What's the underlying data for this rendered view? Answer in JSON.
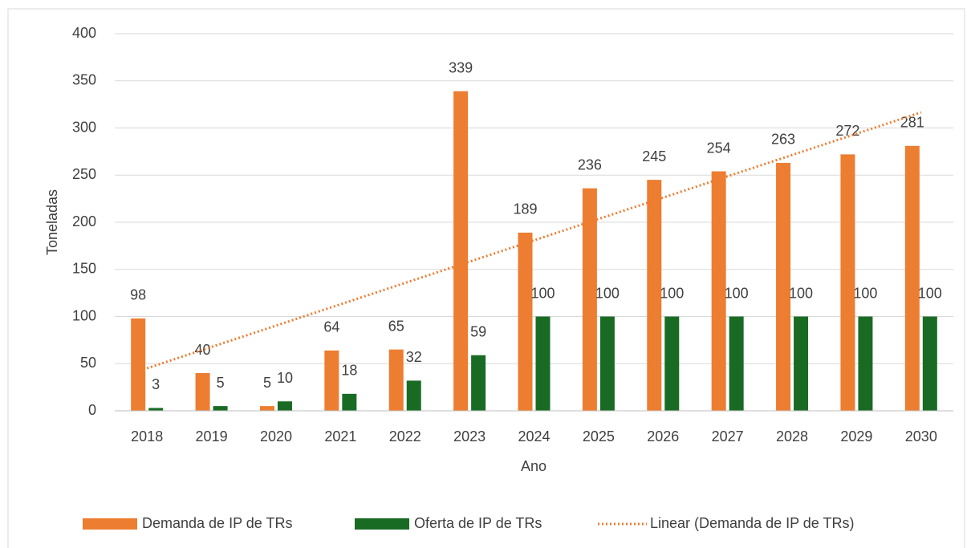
{
  "chart_data": {
    "type": "bar",
    "categories": [
      "2018",
      "2019",
      "2020",
      "2021",
      "2022",
      "2023",
      "2024",
      "2025",
      "2026",
      "2027",
      "2028",
      "2029",
      "2030"
    ],
    "series": [
      {
        "name": "Demanda de IP de TRs",
        "color": "#ED7D31",
        "values": [
          98,
          40,
          5,
          64,
          65,
          339,
          189,
          236,
          245,
          254,
          263,
          272,
          281
        ]
      },
      {
        "name": "Oferta de IP de TRs",
        "color": "#196B24",
        "values": [
          3,
          5,
          10,
          18,
          32,
          59,
          100,
          100,
          100,
          100,
          100,
          100,
          100
        ]
      }
    ],
    "trendline": {
      "name": "Linear (Demanda de IP de TRs)",
      "series": 0,
      "color": "#ED7D31"
    },
    "xlabel": "Ano",
    "ylabel": "Toneladas",
    "ylim": [
      0,
      400
    ],
    "yticks": [
      0,
      50,
      100,
      150,
      200,
      250,
      300,
      350,
      400
    ],
    "grid": true,
    "legend": "bottom"
  }
}
